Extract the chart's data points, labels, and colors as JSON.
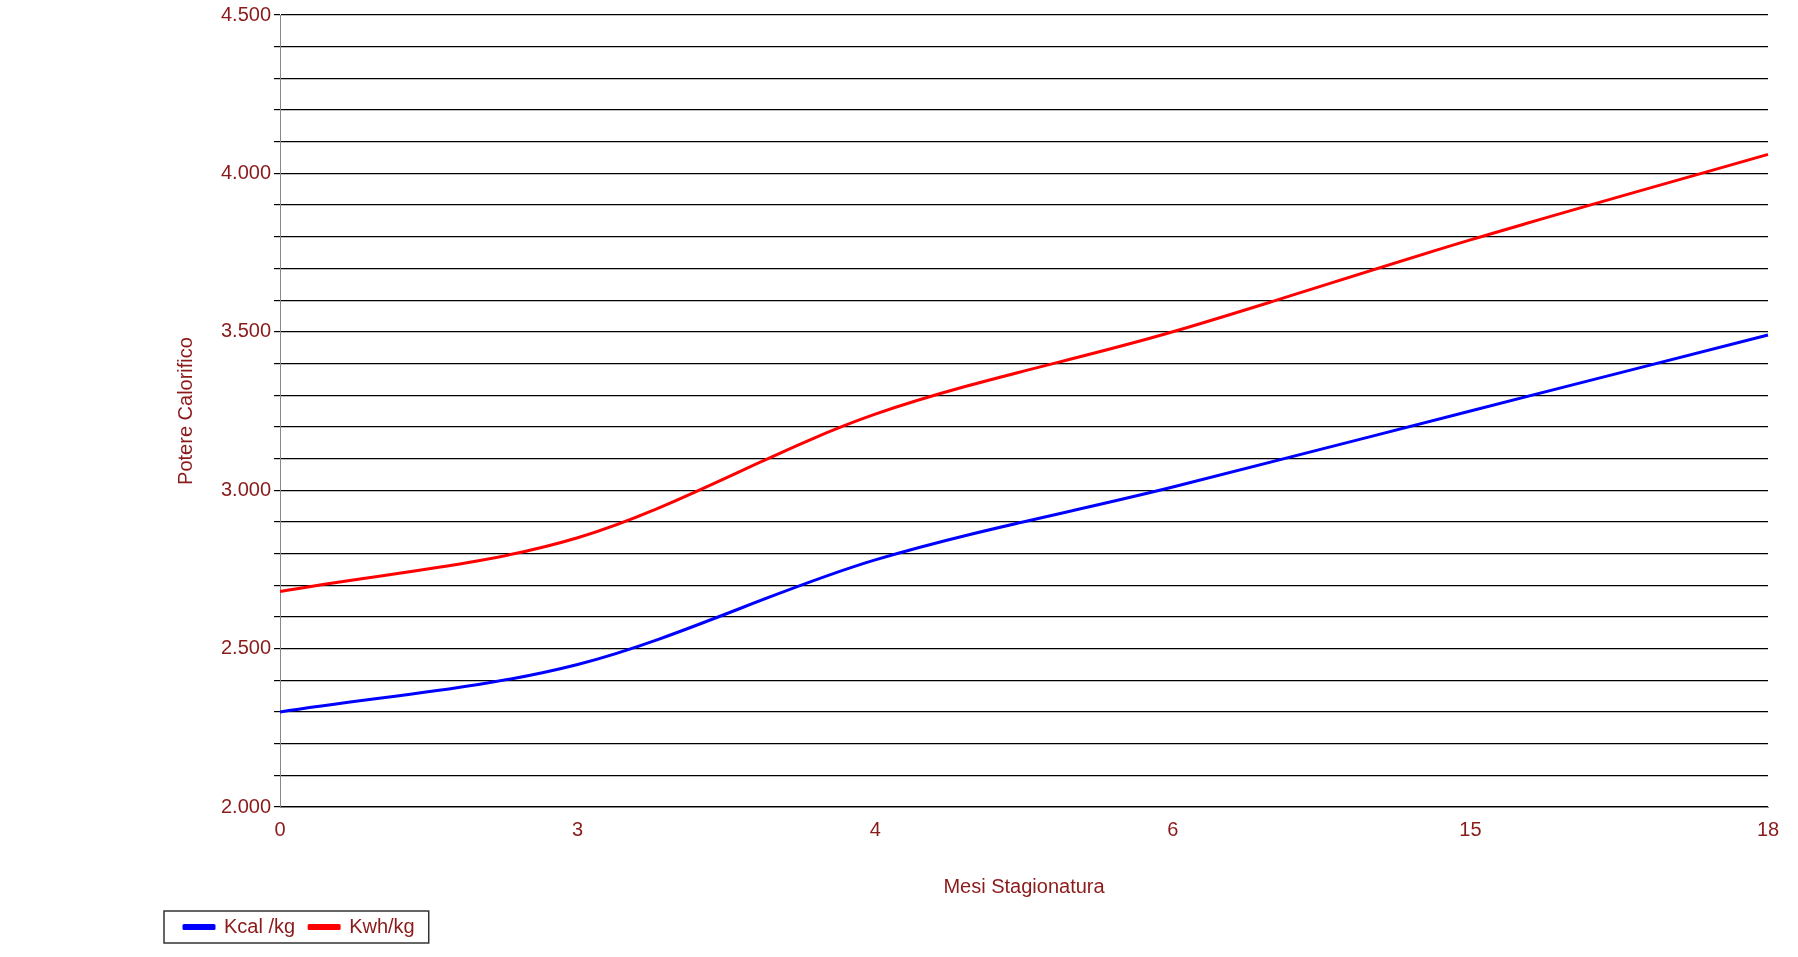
{
  "chart_data": {
    "type": "line",
    "xlabel": "Mesi Stagionatura",
    "ylabel": "Potere Calorifico",
    "categories": [
      "0",
      "3",
      "4",
      "6",
      "15",
      "18"
    ],
    "series": [
      {
        "name": "Kcal /kg",
        "color": "#0000ff",
        "values": [
          2300,
          2450,
          2780,
          3010,
          3250,
          3490
        ]
      },
      {
        "name": "Kwh/kg",
        "color": "#ff0000",
        "values": [
          2680,
          2850,
          3240,
          3500,
          3790,
          4060
        ]
      }
    ],
    "ylim": [
      2000,
      4500
    ],
    "yticks": [
      {
        "value": 2000,
        "label": "2.000"
      },
      {
        "value": 2100,
        "label": null
      },
      {
        "value": 2200,
        "label": null
      },
      {
        "value": 2300,
        "label": null
      },
      {
        "value": 2400,
        "label": null
      },
      {
        "value": 2500,
        "label": "2.500"
      },
      {
        "value": 2600,
        "label": null
      },
      {
        "value": 2700,
        "label": null
      },
      {
        "value": 2800,
        "label": null
      },
      {
        "value": 2900,
        "label": null
      },
      {
        "value": 3000,
        "label": "3.000"
      },
      {
        "value": 3100,
        "label": null
      },
      {
        "value": 3200,
        "label": null
      },
      {
        "value": 3300,
        "label": null
      },
      {
        "value": 3400,
        "label": null
      },
      {
        "value": 3500,
        "label": "3.500"
      },
      {
        "value": 3600,
        "label": null
      },
      {
        "value": 3700,
        "label": null
      },
      {
        "value": 3800,
        "label": null
      },
      {
        "value": 3900,
        "label": null
      },
      {
        "value": 4000,
        "label": "4.000"
      },
      {
        "value": 4100,
        "label": null
      },
      {
        "value": 4200,
        "label": null
      },
      {
        "value": 4300,
        "label": null
      },
      {
        "value": 4400,
        "label": null
      },
      {
        "value": 4500,
        "label": "4.500"
      }
    ],
    "grid": "y",
    "legend": "bottom left",
    "marker": "none",
    "line_style": "solid"
  }
}
